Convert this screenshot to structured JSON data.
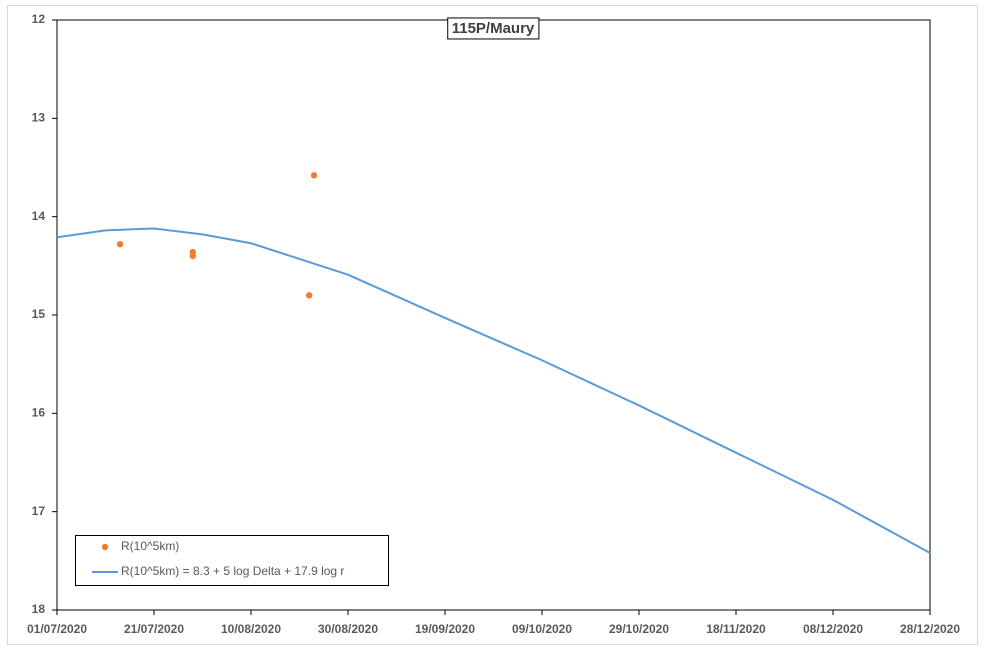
{
  "chart_data": {
    "type": "scatter",
    "title": "115P/Maury",
    "series": [
      {
        "name": "R(10^5km)",
        "type": "scatter",
        "color": "#ed7d31",
        "x": [
          "2020-07-14",
          "2020-07-29",
          "2020-07-29",
          "2020-08-22",
          "2020-08-23"
        ],
        "values": [
          14.28,
          14.36,
          14.4,
          14.8,
          13.58
        ]
      },
      {
        "name": "R(10^5km) = 8.3 + 5 log Delta + 17.9 log r",
        "type": "line",
        "color": "#5b9bd5",
        "x": [
          "2020-07-01",
          "2020-07-11",
          "2020-07-21",
          "2020-07-31",
          "2020-08-10",
          "2020-08-30",
          "2020-09-19",
          "2020-10-09",
          "2020-10-29",
          "2020-11-18",
          "2020-12-08",
          "2020-12-28"
        ],
        "values": [
          14.21,
          14.14,
          14.12,
          14.18,
          14.27,
          14.59,
          15.03,
          15.46,
          15.92,
          16.4,
          16.88,
          17.42
        ]
      }
    ],
    "xlim": [
      "2020-07-01",
      "2020-12-28"
    ],
    "xticks": [
      {
        "value": "2020-07-01",
        "label": "01/07/2020"
      },
      {
        "value": "2020-07-21",
        "label": "21/07/2020"
      },
      {
        "value": "2020-08-10",
        "label": "10/08/2020"
      },
      {
        "value": "2020-08-30",
        "label": "30/08/2020"
      },
      {
        "value": "2020-09-19",
        "label": "19/09/2020"
      },
      {
        "value": "2020-10-09",
        "label": "09/10/2020"
      },
      {
        "value": "2020-10-29",
        "label": "29/10/2020"
      },
      {
        "value": "2020-11-18",
        "label": "18/11/2020"
      },
      {
        "value": "2020-12-08",
        "label": "08/12/2020"
      },
      {
        "value": "2020-12-28",
        "label": "28/12/2020"
      }
    ],
    "ylim": [
      18,
      12
    ],
    "yticks": [
      12,
      13,
      14,
      15,
      16,
      17,
      18
    ],
    "y_inverted": true,
    "grid": false,
    "legend": "lower left"
  }
}
